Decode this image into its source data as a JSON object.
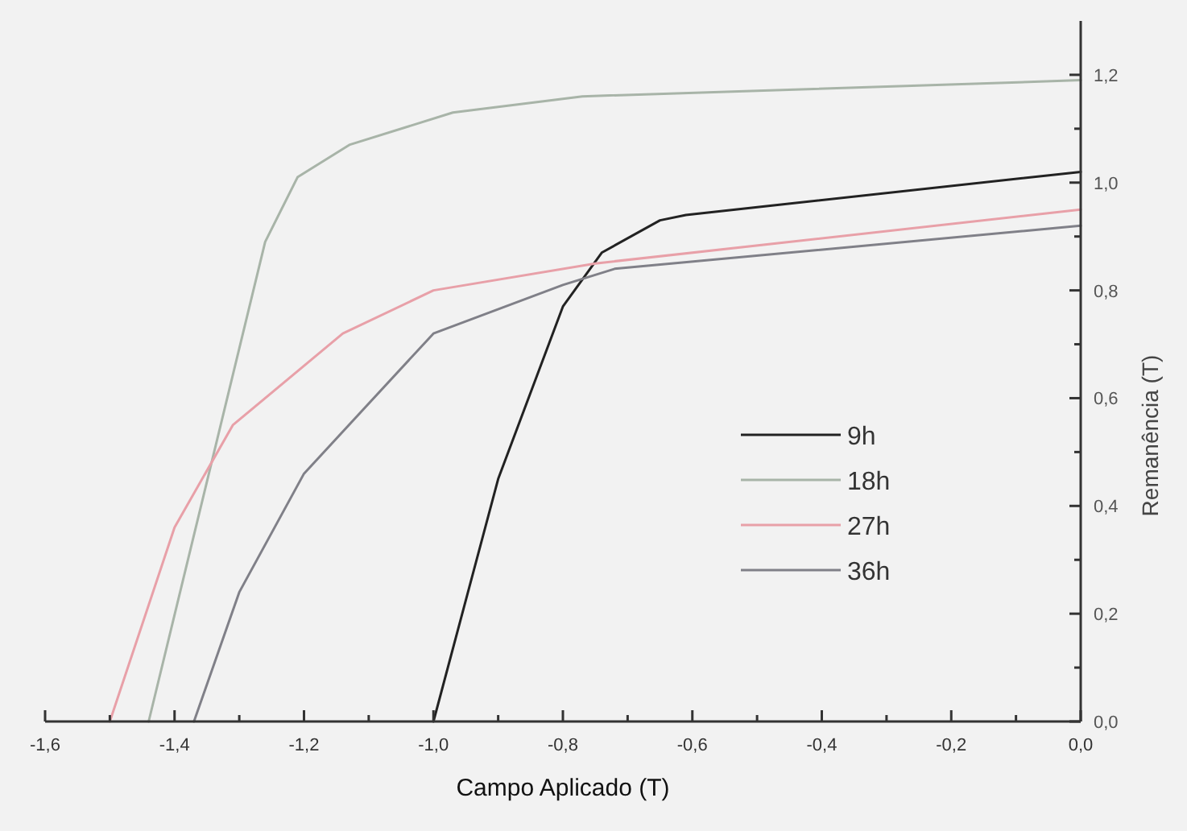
{
  "chart_data": {
    "type": "line",
    "xlabel": "Campo Aplicado (T)",
    "ylabel": "Remanência (T)",
    "xlim": [
      -1.6,
      0
    ],
    "ylim": [
      0,
      1.3
    ],
    "xticks": [
      {
        "value": -1.6,
        "label": "-1,6"
      },
      {
        "value": -1.5,
        "label": null
      },
      {
        "value": -1.4,
        "label": "-1,4"
      },
      {
        "value": -1.3,
        "label": null
      },
      {
        "value": -1.2,
        "label": "-1,2"
      },
      {
        "value": -1.1,
        "label": null
      },
      {
        "value": -1.0,
        "label": "-1,0"
      },
      {
        "value": -0.9,
        "label": null
      },
      {
        "value": -0.8,
        "label": "-0,8"
      },
      {
        "value": -0.7,
        "label": null
      },
      {
        "value": -0.6,
        "label": "-0,6"
      },
      {
        "value": -0.5,
        "label": null
      },
      {
        "value": -0.4,
        "label": "-0,4"
      },
      {
        "value": -0.3,
        "label": null
      },
      {
        "value": -0.2,
        "label": "-0,2"
      },
      {
        "value": -0.1,
        "label": null
      },
      {
        "value": 0,
        "label": "0,0"
      }
    ],
    "yticks": [
      {
        "value": 0,
        "label": "0,0"
      },
      {
        "value": 0.1,
        "label": null
      },
      {
        "value": 0.2,
        "label": "0,2"
      },
      {
        "value": 0.3,
        "label": null
      },
      {
        "value": 0.4,
        "label": "0,4"
      },
      {
        "value": 0.5,
        "label": null
      },
      {
        "value": 0.6,
        "label": "0,6"
      },
      {
        "value": 0.7,
        "label": null
      },
      {
        "value": 0.8,
        "label": "0,8"
      },
      {
        "value": 0.9,
        "label": null
      },
      {
        "value": 1.0,
        "label": "1,0"
      },
      {
        "value": 1.1,
        "label": null
      },
      {
        "value": 1.2,
        "label": "1,2"
      }
    ],
    "grid": false,
    "legend": "right",
    "marker": "none",
    "line_style": "solid",
    "series": [
      {
        "name": "9h",
        "color": "#222222",
        "x": [
          -1.0,
          -0.9,
          -0.8,
          -0.74,
          -0.65,
          -0.61,
          0
        ],
        "values": [
          0,
          0.45,
          0.77,
          0.87,
          0.93,
          0.94,
          1.02
        ]
      },
      {
        "name": "18h",
        "color": "#a8b4a8",
        "x": [
          -1.44,
          -1.26,
          -1.21,
          -1.13,
          -0.97,
          -0.77,
          0
        ],
        "values": [
          0,
          0.89,
          1.01,
          1.07,
          1.13,
          1.16,
          1.19
        ]
      },
      {
        "name": "27h",
        "color": "#e8a0a8",
        "x": [
          -1.5,
          -1.4,
          -1.31,
          -1.14,
          -1.0,
          -0.75,
          0
        ],
        "values": [
          0,
          0.36,
          0.55,
          0.72,
          0.8,
          0.85,
          0.95
        ]
      },
      {
        "name": "36h",
        "color": "#808088",
        "x": [
          -1.37,
          -1.3,
          -1.2,
          -1.0,
          -0.8,
          -0.72,
          0
        ],
        "values": [
          0,
          0.24,
          0.46,
          0.72,
          0.81,
          0.84,
          0.92
        ]
      }
    ]
  }
}
